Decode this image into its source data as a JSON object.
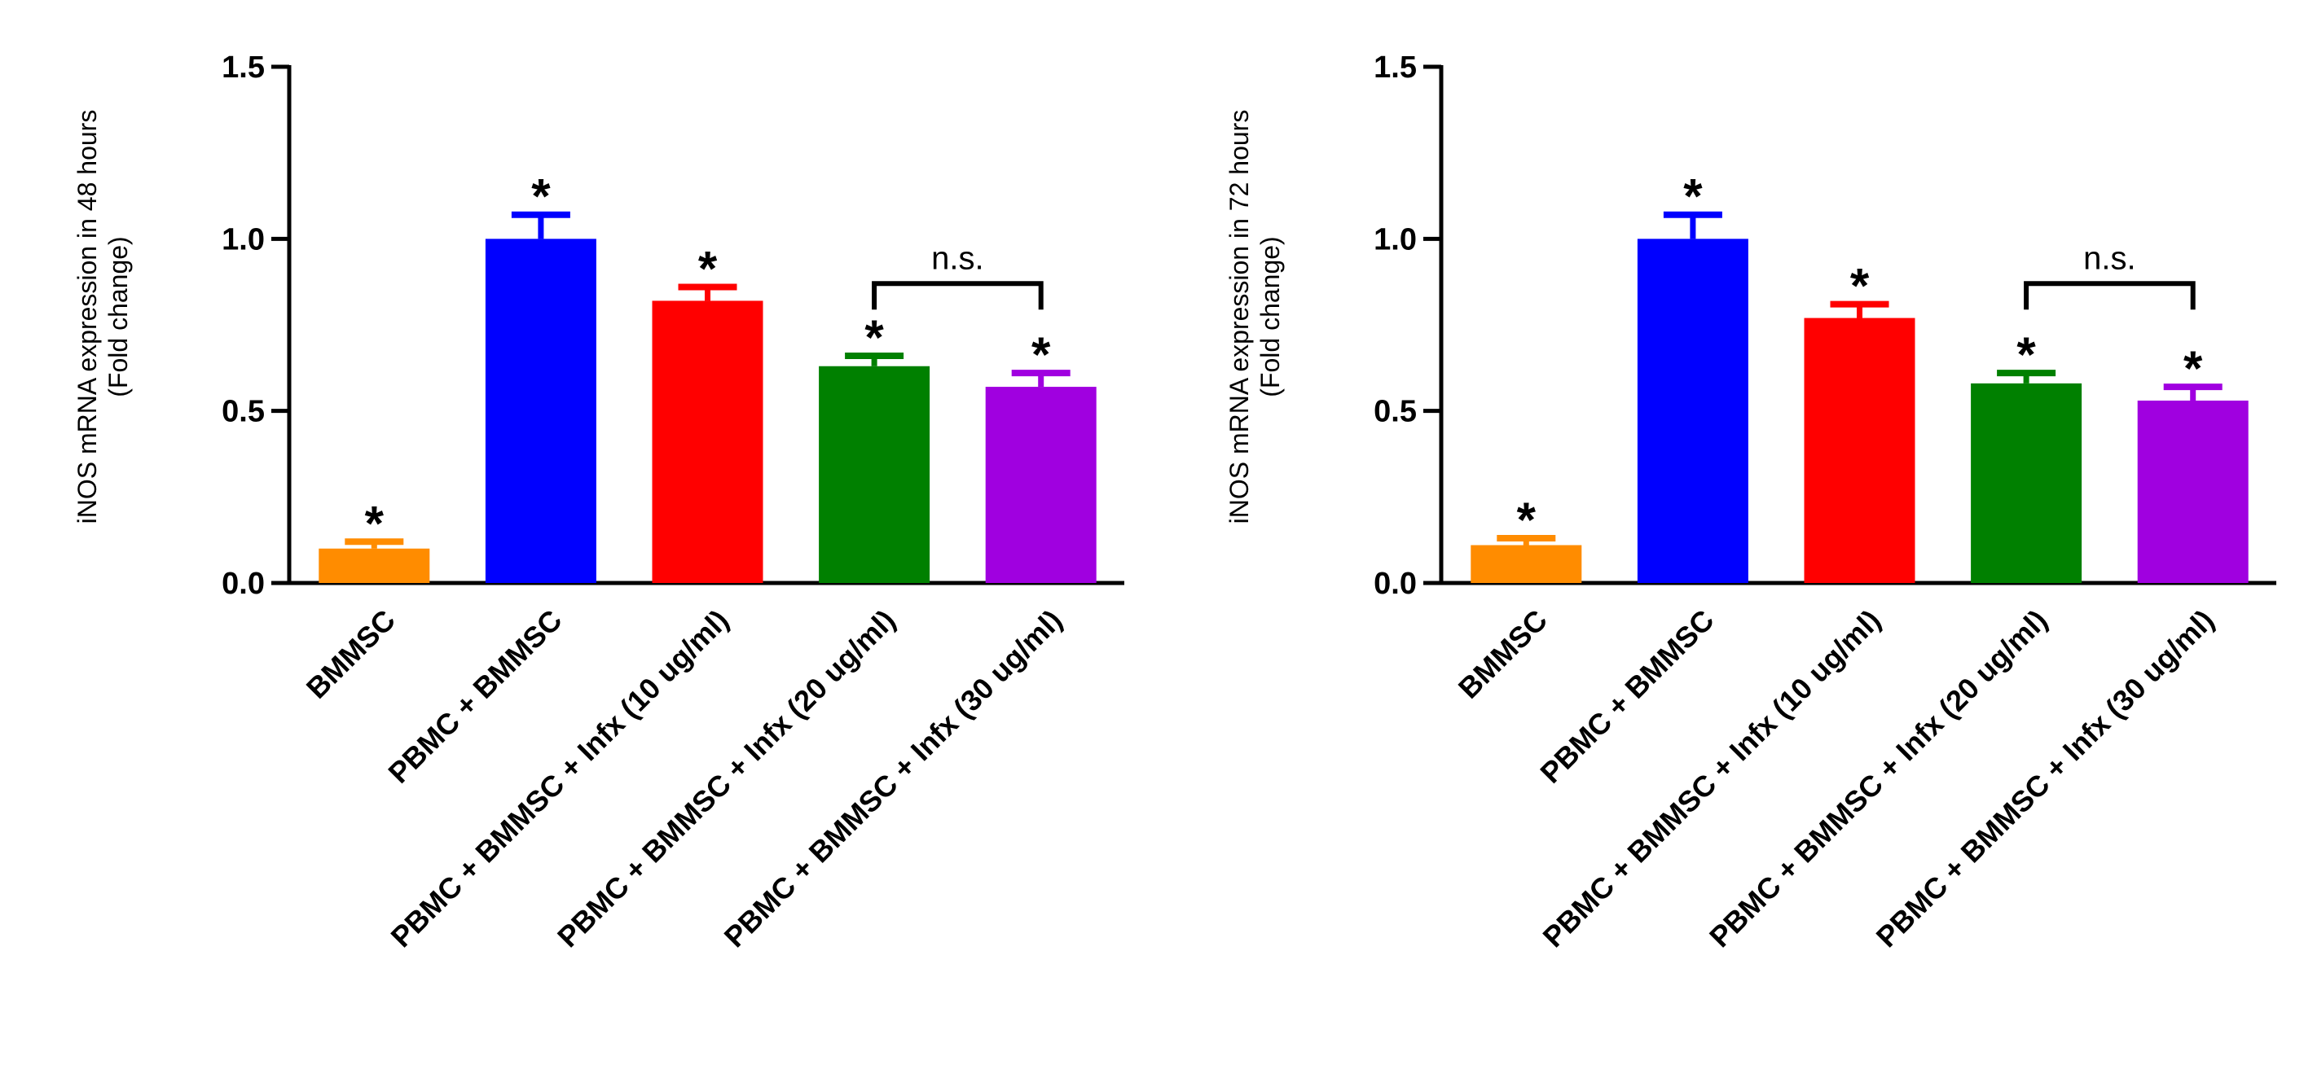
{
  "chart_data": [
    {
      "type": "bar",
      "ylabel": [
        "iNOS mRNA expression in 48 hours",
        "(Fold change)"
      ],
      "ylim": [
        0,
        1.5
      ],
      "yticks": [
        "0.0",
        "0.5",
        "1.0",
        "1.5"
      ],
      "ytick_values": [
        0,
        0.5,
        1.0,
        1.5
      ],
      "categories": [
        "BMMSC",
        "PBMC + BMMSC",
        "PBMC + BMMSC + Infx (10 ug/ml)",
        "PBMC + BMMSC + Infx (20 ug/ml)",
        "PBMC + BMMSC + Infx (30 ug/ml)"
      ],
      "values": [
        0.1,
        1.0,
        0.82,
        0.63,
        0.57
      ],
      "errors": [
        0.02,
        0.07,
        0.04,
        0.03,
        0.04
      ],
      "colors": [
        "#ff8c00",
        "#0000ff",
        "#ff0000",
        "#008000",
        "#a000e0"
      ],
      "significance": [
        "*",
        "*",
        "*",
        "*",
        "*"
      ],
      "bracket": {
        "from": 3,
        "to": 4,
        "label": "n.s.",
        "level": 0.87
      }
    },
    {
      "type": "bar",
      "ylabel": [
        "iNOS mRNA expression in 72 hours",
        "(Fold change)"
      ],
      "ylim": [
        0,
        1.5
      ],
      "yticks": [
        "0.0",
        "0.5",
        "1.0",
        "1.5"
      ],
      "ytick_values": [
        0,
        0.5,
        1.0,
        1.5
      ],
      "categories": [
        "BMMSC",
        "PBMC + BMMSC",
        "PBMC + BMMSC + Infx (10 ug/ml)",
        "PBMC + BMMSC + Infx (20 ug/ml)",
        "PBMC + BMMSC + Infx (30 ug/ml)"
      ],
      "values": [
        0.11,
        1.0,
        0.77,
        0.58,
        0.53
      ],
      "errors": [
        0.02,
        0.07,
        0.04,
        0.03,
        0.04
      ],
      "colors": [
        "#ff8c00",
        "#0000ff",
        "#ff0000",
        "#008000",
        "#a000e0"
      ],
      "significance": [
        "*",
        "*",
        "*",
        "*",
        "*"
      ],
      "bracket": {
        "from": 3,
        "to": 4,
        "label": "n.s.",
        "level": 0.87
      }
    }
  ]
}
